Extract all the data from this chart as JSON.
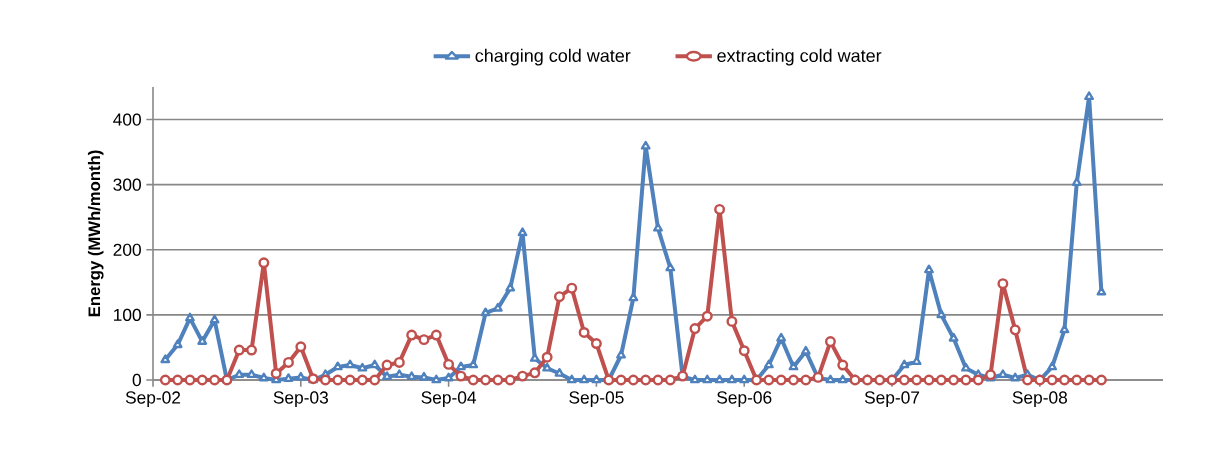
{
  "chart_data": {
    "type": "line",
    "ylabel": "Energy (MWh/month)",
    "x": [
      "2002-10",
      "2002-11",
      "2002-12",
      "2003-01",
      "2003-02",
      "2003-03",
      "2003-04",
      "2003-05",
      "2003-06",
      "2003-07",
      "2003-08",
      "2003-09",
      "2003-10",
      "2003-11",
      "2003-12",
      "2004-01",
      "2004-02",
      "2004-03",
      "2004-04",
      "2004-05",
      "2004-06",
      "2004-07",
      "2004-08",
      "2004-09",
      "2004-10",
      "2004-11",
      "2004-12",
      "2005-01",
      "2005-02",
      "2005-03",
      "2005-04",
      "2005-05",
      "2005-06",
      "2005-07",
      "2005-08",
      "2005-09",
      "2005-10",
      "2005-11",
      "2005-12",
      "2006-01",
      "2006-02",
      "2006-03",
      "2006-04",
      "2006-05",
      "2006-06",
      "2006-07",
      "2006-08",
      "2006-09",
      "2006-10",
      "2006-11",
      "2006-12",
      "2007-01",
      "2007-02",
      "2007-03",
      "2007-04",
      "2007-05",
      "2007-06",
      "2007-07",
      "2007-08",
      "2007-09",
      "2007-10",
      "2007-11",
      "2007-12",
      "2008-01",
      "2008-02",
      "2008-03",
      "2008-04",
      "2008-05",
      "2008-06",
      "2008-07",
      "2008-08",
      "2008-09",
      "2008-10",
      "2008-11",
      "2008-12",
      "2009-01",
      "2009-02"
    ],
    "series": [
      {
        "name": "charging cold water",
        "color": "#4f81bd",
        "marker": "triangle",
        "values": [
          31,
          54,
          95,
          59,
          92,
          0,
          8,
          8,
          3,
          0,
          2,
          4,
          0,
          8,
          20,
          23,
          18,
          23,
          5,
          8,
          5,
          4,
          0,
          3,
          20,
          23,
          103,
          110,
          141,
          226,
          33,
          18,
          10,
          0,
          0,
          0,
          0,
          38,
          126,
          359,
          233,
          172,
          5,
          0,
          0,
          0,
          0,
          0,
          0,
          23,
          64,
          20,
          44,
          3,
          0,
          0,
          0,
          0,
          0,
          0,
          23,
          28,
          169,
          100,
          64,
          18,
          8,
          3,
          8,
          3,
          8,
          0,
          20,
          77,
          303,
          435,
          135
        ]
      },
      {
        "name": "extracting cold water",
        "color": "#c0504d",
        "marker": "circle",
        "values": [
          0,
          0,
          0,
          0,
          0,
          0,
          46,
          46,
          180,
          10,
          27,
          51,
          2,
          0,
          0,
          0,
          0,
          0,
          23,
          27,
          69,
          62,
          69,
          24,
          6,
          0,
          0,
          0,
          0,
          6,
          11,
          35,
          128,
          141,
          73,
          56,
          0,
          0,
          0,
          0,
          0,
          0,
          6,
          79,
          98,
          262,
          90,
          45,
          0,
          0,
          0,
          0,
          0,
          4,
          59,
          23,
          0,
          0,
          0,
          0,
          0,
          0,
          0,
          0,
          0,
          0,
          0,
          8,
          148,
          77,
          0,
          0,
          0,
          0,
          0,
          0,
          0
        ]
      }
    ],
    "xlim": [
      "2002-09",
      "2009-07"
    ],
    "xticks": [
      {
        "value": "2002-09",
        "label": "Sep-02"
      },
      {
        "value": "2003-09",
        "label": "Sep-03"
      },
      {
        "value": "2004-09",
        "label": "Sep-04"
      },
      {
        "value": "2005-09",
        "label": "Sep-05"
      },
      {
        "value": "2006-09",
        "label": "Sep-06"
      },
      {
        "value": "2007-09",
        "label": "Sep-07"
      },
      {
        "value": "2008-09",
        "label": "Sep-08"
      }
    ],
    "ylim": [
      0,
      450
    ],
    "yticks": [
      0,
      100,
      200,
      300,
      400
    ],
    "grid": "y",
    "legend": "top"
  }
}
